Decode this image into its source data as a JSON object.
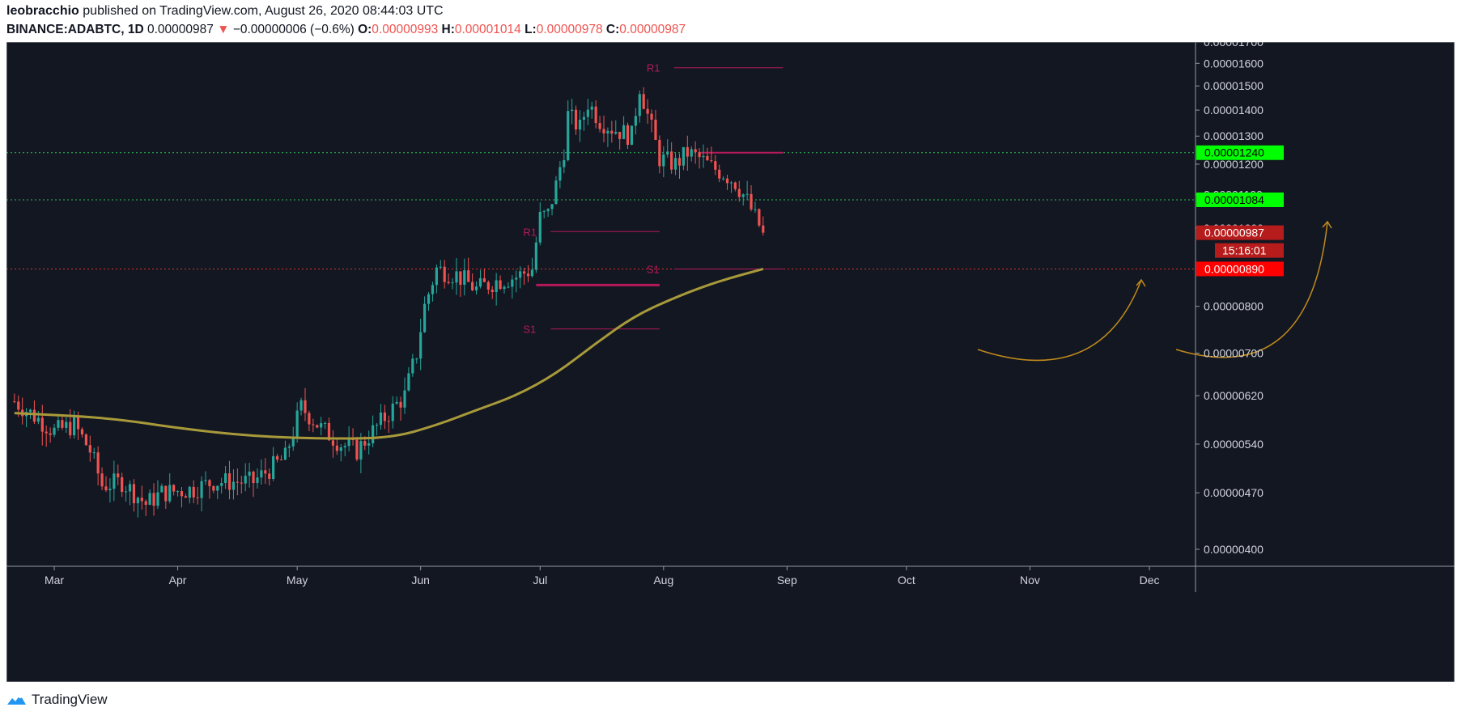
{
  "header": {
    "author": "leobracchio",
    "published_text": "published on TradingView.com, August 26, 2020 08:44:03 UTC",
    "symbol": "BINANCE:ADABTC, 1D",
    "last": "0.00000987",
    "change_arrow": "▼",
    "change": "−0.00000006 (−0.6%)",
    "o_label": "O:",
    "o_value": "0.00000993",
    "h_label": "H:",
    "h_value": "0.00001014",
    "l_label": "L:",
    "l_value": "0.00000978",
    "c_label": "C:",
    "c_value": "0.00000987"
  },
  "branding": {
    "name": "TradingView",
    "icon": "tradingview-logo-icon"
  },
  "colors": {
    "background": "#131722",
    "up": "#26a69a",
    "down": "#ef5350",
    "ma": "#a89a3a",
    "pivot": "#b5195a",
    "arrows": "#c08a1a",
    "green_badge": "#00ff00",
    "red_badge": "#ff0000"
  },
  "chart_data": {
    "type": "candlestick",
    "x_axis_months": [
      "Mar",
      "Apr",
      "May",
      "Jun",
      "Jul",
      "Aug",
      "Sep",
      "Oct",
      "Nov",
      "Dec"
    ],
    "y_axis_ticks": [
      "0.00001700",
      "0.00001600",
      "0.00001500",
      "0.00001400",
      "0.00001300",
      "0.00001200",
      "0.00001100",
      "0.00001000",
      "0.00000800",
      "0.00000700",
      "0.00000620",
      "0.00000540",
      "0.00000470",
      "0.00000400"
    ],
    "y_scale": "log",
    "horizontal_lines": [
      {
        "value": 1.24e-05,
        "label": "0.00001240",
        "color": "green",
        "style": "dotted"
      },
      {
        "value": 1.084e-05,
        "label": "0.00001084",
        "color": "green",
        "style": "dotted"
      },
      {
        "value": 8.9e-06,
        "label": "0.00000890",
        "color": "red",
        "style": "dotted"
      }
    ],
    "last_price_label": "0.00000987",
    "countdown": "15:16:01",
    "pivot_labels": {
      "r1": "R1",
      "s1": "S1"
    },
    "close_anchors": [
      [
        "2020-02-20",
        6.1
      ],
      [
        "2020-03-01",
        5.6
      ],
      [
        "2020-03-06",
        5.7
      ],
      [
        "2020-03-10",
        5.3
      ],
      [
        "2020-03-13",
        4.8
      ],
      [
        "2020-03-18",
        4.85
      ],
      [
        "2020-03-24",
        4.55
      ],
      [
        "2020-03-28",
        4.7
      ],
      [
        "2020-04-05",
        4.75
      ],
      [
        "2020-04-10",
        4.85
      ],
      [
        "2020-04-20",
        4.85
      ],
      [
        "2020-04-28",
        5.2
      ],
      [
        "2020-05-02",
        6.0
      ],
      [
        "2020-05-07",
        5.65
      ],
      [
        "2020-05-12",
        5.4
      ],
      [
        "2020-05-16",
        5.3
      ],
      [
        "2020-05-20",
        5.6
      ],
      [
        "2020-05-24",
        5.9
      ],
      [
        "2020-05-28",
        6.2
      ],
      [
        "2020-05-31",
        7.0
      ],
      [
        "2020-06-02",
        8.0
      ],
      [
        "2020-06-05",
        8.9
      ],
      [
        "2020-06-10",
        8.75
      ],
      [
        "2020-06-15",
        8.4
      ],
      [
        "2020-06-20",
        8.6
      ],
      [
        "2020-06-25",
        8.7
      ],
      [
        "2020-06-29",
        8.9
      ],
      [
        "2020-07-01",
        10.3
      ],
      [
        "2020-07-03",
        10.4
      ],
      [
        "2020-07-05",
        11.3
      ],
      [
        "2020-07-07",
        12.5
      ],
      [
        "2020-07-08",
        13.8
      ],
      [
        "2020-07-11",
        13.3
      ],
      [
        "2020-07-13",
        14.3
      ],
      [
        "2020-07-16",
        13.6
      ],
      [
        "2020-07-19",
        13.3
      ],
      [
        "2020-07-24",
        13.0
      ],
      [
        "2020-07-26",
        15.0
      ],
      [
        "2020-07-28",
        13.8
      ],
      [
        "2020-07-31",
        12.2
      ],
      [
        "2020-08-04",
        12.0
      ],
      [
        "2020-08-07",
        12.4
      ],
      [
        "2020-08-10",
        12.2
      ],
      [
        "2020-08-13",
        11.9
      ],
      [
        "2020-08-16",
        11.7
      ],
      [
        "2020-08-19",
        11.4
      ],
      [
        "2020-08-22",
        10.8
      ],
      [
        "2020-08-24",
        10.3
      ],
      [
        "2020-08-26",
        9.87
      ]
    ],
    "moving_average": [
      [
        "2020-02-20",
        5.9
      ],
      [
        "2020-03-15",
        5.82
      ],
      [
        "2020-04-01",
        5.65
      ],
      [
        "2020-04-20",
        5.52
      ],
      [
        "2020-05-10",
        5.48
      ],
      [
        "2020-05-25",
        5.5
      ],
      [
        "2020-06-05",
        5.7
      ],
      [
        "2020-06-15",
        5.95
      ],
      [
        "2020-06-25",
        6.2
      ],
      [
        "2020-07-05",
        6.6
      ],
      [
        "2020-07-15",
        7.2
      ],
      [
        "2020-07-25",
        7.8
      ],
      [
        "2020-08-05",
        8.25
      ],
      [
        "2020-08-15",
        8.6
      ],
      [
        "2020-08-26",
        8.9
      ]
    ],
    "pivot_segments": [
      {
        "label": "R1",
        "value": 1.58e-05,
        "from": "2020-07-31",
        "to": "2020-08-31"
      },
      {
        "label": "",
        "value": 1.24e-05,
        "from": "2020-08-10",
        "to": "2020-08-31"
      },
      {
        "label": "S1",
        "value": 8.9e-06,
        "from": "2020-07-31",
        "to": "2020-08-31"
      },
      {
        "label": "R1",
        "value": 9.9e-06,
        "from": "2020-06-30",
        "to": "2020-07-31"
      },
      {
        "label": "",
        "value": 8.5e-06,
        "from": "2020-06-30",
        "to": "2020-07-31"
      },
      {
        "label": "S1",
        "value": 7.5e-06,
        "from": "2020-06-30",
        "to": "2020-07-31"
      }
    ]
  }
}
